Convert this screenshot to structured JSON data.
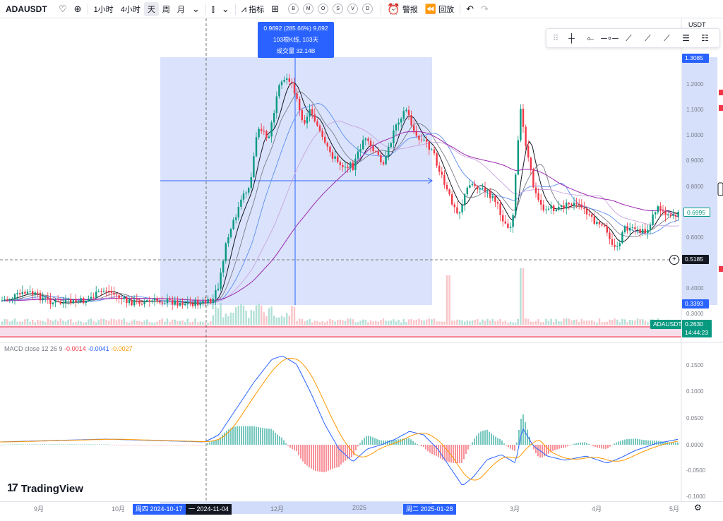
{
  "toolbar": {
    "symbol": "ADAUSDT",
    "timeframes": [
      "1小时",
      "4小时",
      "天",
      "周",
      "月"
    ],
    "active_timeframe_index": 2,
    "indicators_label": "指标",
    "circle_buttons": [
      "B",
      "M",
      "O",
      "S",
      "V",
      "D"
    ],
    "alert_label": "警报",
    "replay_label": "回放"
  },
  "drawing_tools": [
    "cross-tool",
    "horizontal-ray",
    "horizontal-line",
    "trend-line",
    "extended-line",
    "info-line",
    "parallel-channel",
    "regression-channel"
  ],
  "measure": {
    "line1": "0.9692 (285.66%) 9,692",
    "line2": "103根K线, 103天",
    "line3": "成交量 32.14B"
  },
  "price_axis": {
    "ticks": [
      "1.2000",
      "1.1000",
      "1.0000",
      "0.9000",
      "0.8000",
      "0.6000",
      "0.4000",
      "0.3000"
    ],
    "high_label": "1.3085",
    "last_price": "0.6995",
    "crosshair_price": "0.5185",
    "low_label": "0.3393",
    "symbol_tag": "ADAUSDT",
    "volume_value": "0.2630",
    "countdown": "14:44:23",
    "partial_top_label": "USDT"
  },
  "macd": {
    "legend_name": "MACD close 12 26 9",
    "hist": "-0.0014",
    "macd": "-0.0041",
    "signal": "-0.0027",
    "ticks": [
      "0.1500",
      "0.1000",
      "0.0500",
      "0.0000",
      "-0.0500",
      "-0.1000"
    ]
  },
  "brand": "TradingView",
  "time_axis": {
    "labels": [
      "9月",
      "10月",
      "12月",
      "2025",
      "3月",
      "4月",
      "5月"
    ],
    "range_start": "周四 2024-10-17",
    "range_mid": "一 2024-11-04",
    "range_end": "周二 2025-01-28"
  },
  "colors": {
    "up": "#089981",
    "down": "#f23645",
    "accent": "#2962ff",
    "macd_line": "#2962ff",
    "signal_line": "#ff9800"
  }
}
